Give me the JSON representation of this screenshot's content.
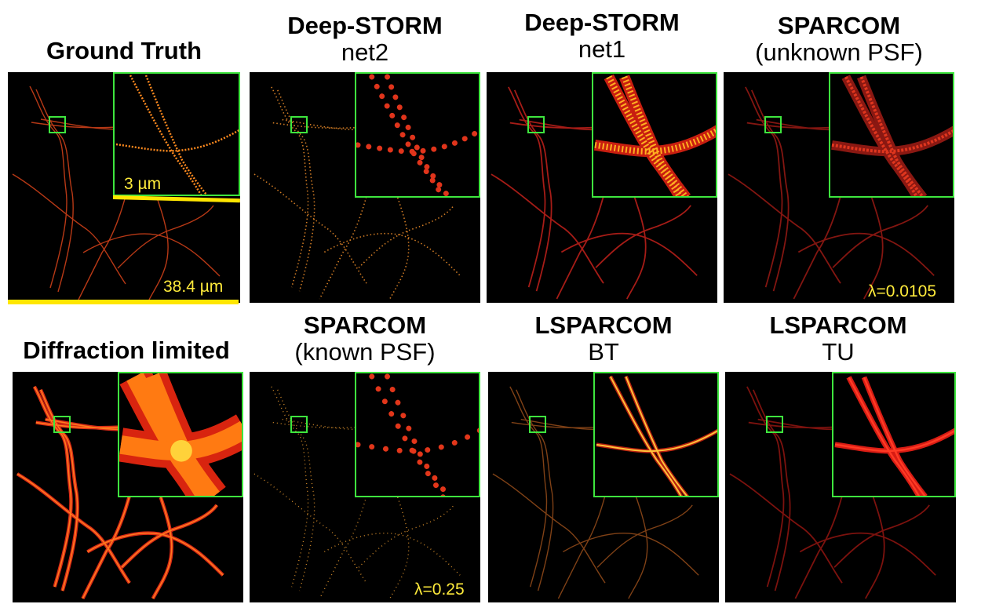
{
  "panels": [
    {
      "line1": "Ground Truth",
      "line2": ""
    },
    {
      "line1": "Deep-STORM",
      "line2": "net2"
    },
    {
      "line1": "Deep-STORM",
      "line2": "net1"
    },
    {
      "line1": "SPARCOM",
      "line2": "(unknown PSF)"
    },
    {
      "line1": "Diffraction limited",
      "line2": ""
    },
    {
      "line1": "SPARCOM",
      "line2": "(known PSF)"
    },
    {
      "line1": "LSPARCOM",
      "line2": "BT"
    },
    {
      "line1": "LSPARCOM",
      "line2": "TU"
    }
  ],
  "annotations": {
    "inset_scale": "3 µm",
    "full_scale": "38.4 µm",
    "lambda_unknown": "λ=0.0105",
    "lambda_known": "λ=0.25"
  },
  "colors": {
    "inset_border": "#3ee63e",
    "scalebar": "#ffe600",
    "annotation_text": "#ffeb3b"
  }
}
